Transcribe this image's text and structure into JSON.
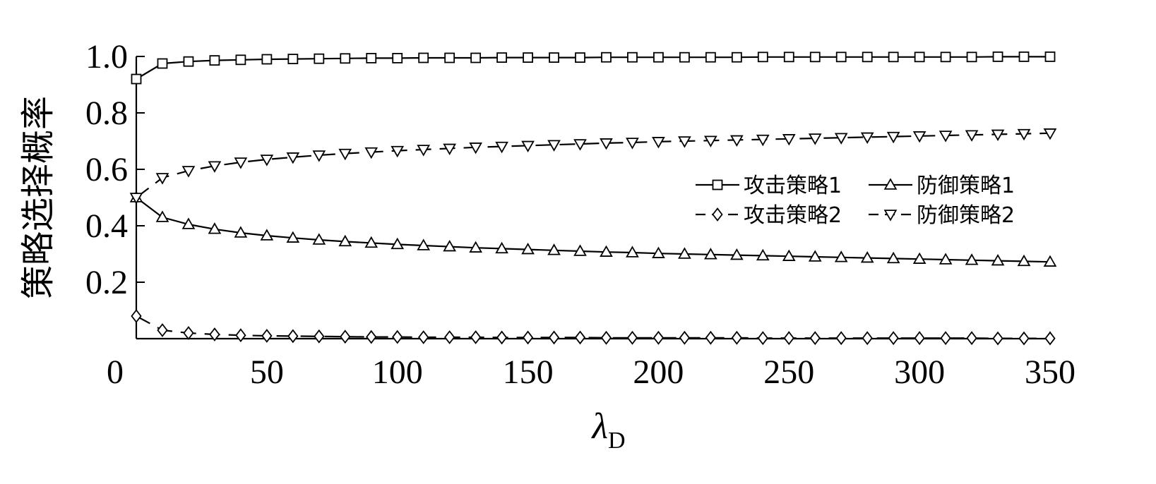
{
  "chart_data": {
    "type": "line",
    "title": "",
    "ylabel": "策略选择概率",
    "xlabel": "λ",
    "xlabel_sub": "D",
    "xlim": [
      0,
      350
    ],
    "ylim": [
      0,
      1.0
    ],
    "xticks": [
      0,
      50,
      100,
      150,
      200,
      250,
      300,
      350
    ],
    "yticks": [
      0.2,
      0.4,
      0.6,
      0.8,
      1.0
    ],
    "xtick_labels": [
      "0",
      "50",
      "100",
      "150",
      "200",
      "250",
      "300",
      "350"
    ],
    "ytick_labels": [
      "0.2",
      "0.4",
      "0.6",
      "0.8",
      "1.0"
    ],
    "grid": false,
    "legend_position": "right",
    "x": [
      0,
      10,
      20,
      30,
      40,
      50,
      60,
      70,
      80,
      90,
      100,
      110,
      120,
      130,
      140,
      150,
      160,
      170,
      180,
      190,
      200,
      210,
      220,
      230,
      240,
      250,
      260,
      270,
      280,
      290,
      300,
      310,
      320,
      330,
      340,
      350
    ],
    "series": [
      {
        "name": "攻击策略1",
        "line": "solid",
        "marker": "square",
        "values": [
          0.92,
          0.975,
          0.982,
          0.986,
          0.988,
          0.99,
          0.991,
          0.992,
          0.993,
          0.994,
          0.994,
          0.995,
          0.995,
          0.995,
          0.996,
          0.996,
          0.996,
          0.996,
          0.997,
          0.997,
          0.997,
          0.997,
          0.997,
          0.997,
          0.998,
          0.998,
          0.998,
          0.998,
          0.998,
          0.998,
          0.998,
          0.998,
          0.998,
          0.999,
          0.999,
          0.999
        ]
      },
      {
        "name": "防御策略1",
        "line": "solid",
        "marker": "triangle-up",
        "values": [
          0.5,
          0.43,
          0.405,
          0.388,
          0.375,
          0.365,
          0.357,
          0.35,
          0.344,
          0.339,
          0.334,
          0.33,
          0.326,
          0.322,
          0.319,
          0.316,
          0.313,
          0.31,
          0.307,
          0.305,
          0.302,
          0.3,
          0.298,
          0.296,
          0.294,
          0.292,
          0.29,
          0.288,
          0.286,
          0.284,
          0.282,
          0.28,
          0.278,
          0.276,
          0.274,
          0.272
        ]
      },
      {
        "name": "攻击策略2",
        "line": "dashed",
        "marker": "diamond",
        "values": [
          0.08,
          0.03,
          0.02,
          0.015,
          0.012,
          0.01,
          0.009,
          0.008,
          0.007,
          0.006,
          0.006,
          0.005,
          0.005,
          0.005,
          0.004,
          0.004,
          0.004,
          0.004,
          0.003,
          0.003,
          0.003,
          0.003,
          0.003,
          0.003,
          0.002,
          0.002,
          0.002,
          0.002,
          0.002,
          0.002,
          0.002,
          0.002,
          0.002,
          0.001,
          0.001,
          0.001
        ]
      },
      {
        "name": "防御策略2",
        "line": "dashed",
        "marker": "triangle-down",
        "values": [
          0.5,
          0.57,
          0.595,
          0.612,
          0.625,
          0.635,
          0.643,
          0.65,
          0.656,
          0.661,
          0.666,
          0.67,
          0.674,
          0.678,
          0.681,
          0.684,
          0.687,
          0.69,
          0.693,
          0.695,
          0.698,
          0.7,
          0.702,
          0.704,
          0.706,
          0.708,
          0.71,
          0.712,
          0.714,
          0.716,
          0.718,
          0.72,
          0.722,
          0.724,
          0.726,
          0.728
        ]
      }
    ]
  }
}
